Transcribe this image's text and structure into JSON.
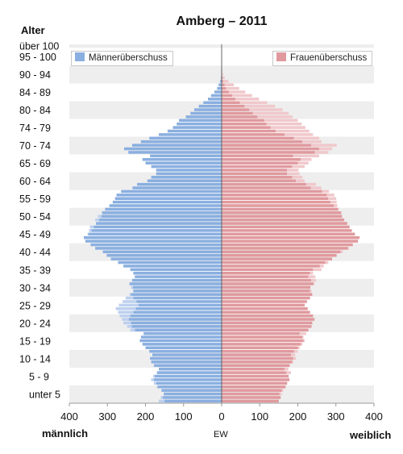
{
  "chart_data": {
    "type": "bar",
    "subtype": "population-pyramid",
    "title": "Amberg – 2011",
    "y_axis_title": "Alter",
    "x_axis_center_label": "EW",
    "x_left_label": "männlich",
    "x_right_label": "weiblich",
    "xlim": [
      -400,
      400
    ],
    "x_tick_labels": [
      "400",
      "300",
      "200",
      "100",
      "0",
      "100",
      "200",
      "300",
      "400"
    ],
    "y_tick_labels": [
      "unter 5",
      "5 - 9",
      "10 - 14",
      "15 - 19",
      "20 - 24",
      "25 - 29",
      "30 - 34",
      "35 - 39",
      "40 - 44",
      "45 - 49",
      "50 - 54",
      "55 - 59",
      "60 - 64",
      "65 - 69",
      "70 - 74",
      "74 - 79",
      "80 - 84",
      "84 - 89",
      "90 - 94",
      "95 - 100",
      "über 100"
    ],
    "legend": {
      "male_surplus": "Männerüberschuss",
      "female_surplus": "Frauenüberschuss"
    },
    "colors": {
      "male": "#8aafe0",
      "female": "#e09a9e",
      "male_surplus": "#bdd0ef",
      "female_surplus": "#f0c8cb",
      "band": "#eeeeee",
      "axis": "#666666"
    },
    "ages_single_year_from": 0,
    "male": [
      165,
      160,
      152,
      158,
      170,
      178,
      185,
      180,
      170,
      165,
      178,
      185,
      188,
      182,
      190,
      200,
      208,
      215,
      212,
      205,
      240,
      248,
      258,
      262,
      268,
      272,
      278,
      270,
      260,
      252,
      242,
      232,
      238,
      242,
      235,
      228,
      232,
      240,
      258,
      272,
      292,
      302,
      312,
      332,
      344,
      358,
      362,
      352,
      348,
      346,
      330,
      332,
      325,
      314,
      306,
      295,
      286,
      280,
      276,
      264,
      234,
      222,
      195,
      185,
      172,
      172,
      185,
      200,
      208,
      188,
      245,
      256,
      235,
      212,
      190,
      165,
      142,
      128,
      118,
      112,
      94,
      82,
      72,
      60,
      48,
      36,
      28,
      19,
      12,
      8,
      4,
      2,
      1
    ],
    "female": [
      150,
      155,
      158,
      162,
      168,
      172,
      178,
      176,
      182,
      175,
      180,
      188,
      195,
      193,
      200,
      205,
      212,
      218,
      215,
      222,
      228,
      236,
      238,
      244,
      240,
      232,
      226,
      218,
      224,
      232,
      238,
      236,
      233,
      242,
      248,
      246,
      240,
      262,
      268,
      280,
      290,
      302,
      318,
      334,
      345,
      358,
      362,
      350,
      342,
      336,
      330,
      322,
      316,
      314,
      307,
      304,
      302,
      301,
      296,
      282,
      262,
      248,
      218,
      212,
      205,
      202,
      218,
      228,
      236,
      256,
      280,
      290,
      302,
      262,
      256,
      240,
      230,
      220,
      210,
      200,
      186,
      176,
      160,
      140,
      120,
      98,
      80,
      62,
      46,
      32,
      18,
      8,
      4,
      2
    ]
  }
}
